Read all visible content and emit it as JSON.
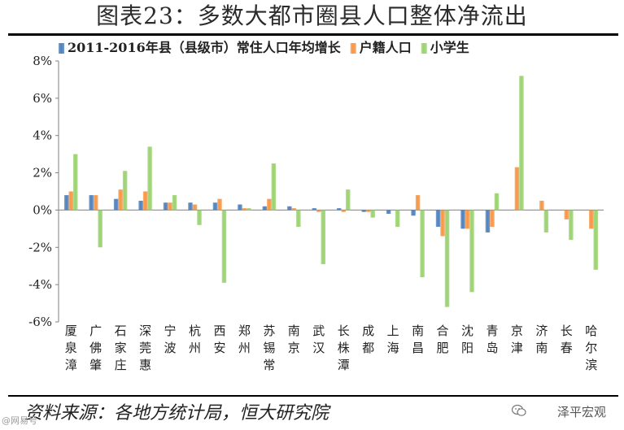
{
  "header": {
    "title": "图表23：多数大都市圈县人口整体净流出"
  },
  "footer": {
    "source": "资料来源：各地方统计局，恒大研究院",
    "watermark": "泽平宏观",
    "corner_mark": "@网易号"
  },
  "colors": {
    "series_1": "#4f81bd",
    "series_2": "#f79646",
    "series_3": "#9bd270"
  },
  "chart_data": {
    "type": "bar",
    "title": "",
    "xlabel": "",
    "ylabel": "",
    "ylim": [
      -0.06,
      0.08
    ],
    "yticks": [
      "8%",
      "6%",
      "4%",
      "2%",
      "0%",
      "-2%",
      "-4%",
      "-6%"
    ],
    "grid": false,
    "legend_position": "top",
    "categories": [
      "厦泉漳",
      "广佛肇",
      "石家庄",
      "深莞惠",
      "宁波",
      "杭州",
      "西安",
      "郑州",
      "苏锡常",
      "南京",
      "武汉",
      "长株潭",
      "成都",
      "上海",
      "南昌",
      "合肥",
      "沈阳",
      "青岛",
      "京津",
      "济南",
      "长春",
      "哈尔滨"
    ],
    "series": [
      {
        "name": "2011-2016年县（县级市）常住人口年均增长",
        "color": "#4f81bd",
        "values": [
          0.008,
          0.008,
          0.006,
          0.005,
          0.004,
          0.004,
          0.004,
          0.003,
          0.002,
          0.002,
          0.001,
          0.001,
          -0.001,
          -0.002,
          -0.003,
          -0.009,
          -0.01,
          -0.012,
          0.0,
          0.0,
          0.0,
          0.0
        ]
      },
      {
        "name": "户籍人口",
        "color": "#f79646",
        "values": [
          0.01,
          0.008,
          0.011,
          0.01,
          0.004,
          0.003,
          0.006,
          0.001,
          0.006,
          0.001,
          -0.001,
          -0.001,
          -0.001,
          0.0,
          0.008,
          -0.014,
          -0.01,
          -0.009,
          0.023,
          0.005,
          -0.005,
          -0.01
        ]
      },
      {
        "name": "小学生",
        "color": "#9bd270",
        "values": [
          0.03,
          -0.02,
          0.021,
          0.034,
          0.008,
          -0.008,
          -0.039,
          0.001,
          0.025,
          -0.009,
          -0.029,
          0.011,
          -0.004,
          -0.009,
          -0.036,
          -0.052,
          -0.044,
          0.009,
          0.072,
          -0.012,
          -0.016,
          -0.032
        ]
      }
    ]
  }
}
